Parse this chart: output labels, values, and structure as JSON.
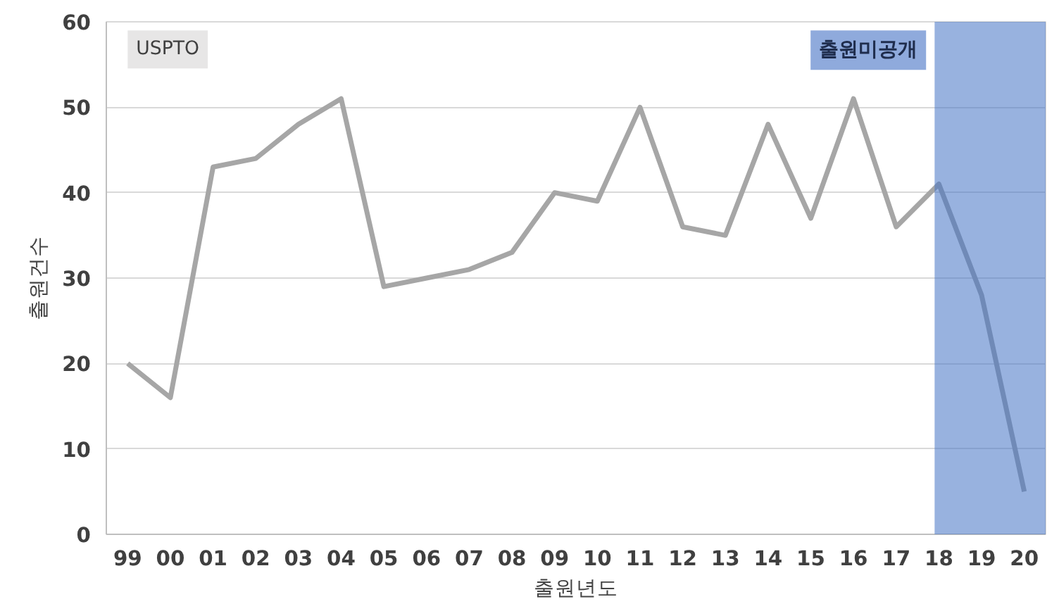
{
  "chart_data": {
    "type": "line",
    "xlabel": "출원년도",
    "ylabel": "출원건수",
    "categories": [
      "99",
      "00",
      "01",
      "02",
      "03",
      "04",
      "05",
      "06",
      "07",
      "08",
      "09",
      "10",
      "11",
      "12",
      "13",
      "14",
      "15",
      "16",
      "17",
      "18",
      "19",
      "20"
    ],
    "series": [
      {
        "color": "#a6a6a6",
        "values": [
          20,
          16,
          43,
          44,
          48,
          51,
          29,
          30,
          31,
          33,
          40,
          39,
          50,
          36,
          35,
          48,
          37,
          51,
          36,
          41,
          28,
          5
        ]
      }
    ],
    "ylim": [
      0,
      60
    ],
    "yticks": [
      0,
      10,
      20,
      30,
      40,
      50,
      60
    ],
    "grid": "y",
    "marker": "none",
    "line_style": "solid",
    "annotations": [
      "USPTO"
    ],
    "bands": [
      {
        "axis": "x",
        "from": "18",
        "to": "20",
        "label": "출원미공개",
        "color": "#4472c4"
      }
    ]
  }
}
